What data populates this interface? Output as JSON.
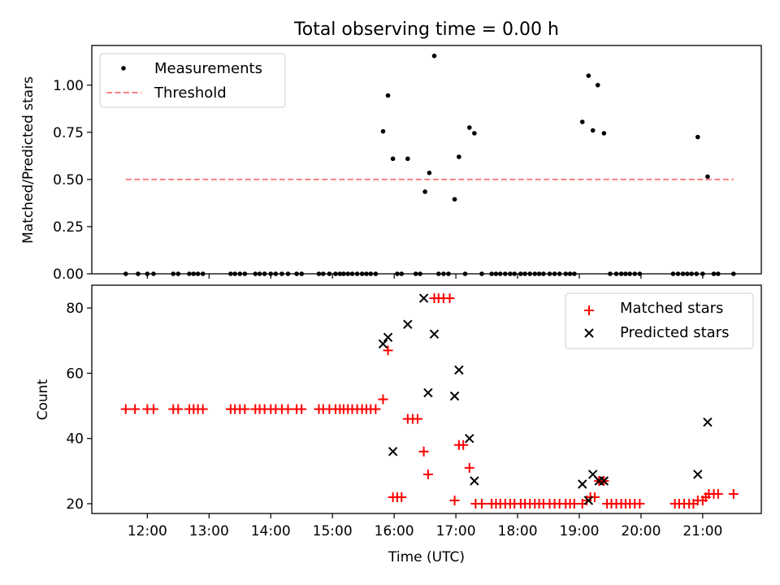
{
  "figure_title": "Total observing time = 0.00 h",
  "chart_data": [
    {
      "type": "scatter",
      "ylabel": "Matched/Predicted stars",
      "xlabel": "",
      "xlim": [
        11.1,
        21.95
      ],
      "ylim": [
        0,
        1.21
      ],
      "yticks": [
        "0.00",
        "0.25",
        "0.50",
        "0.75",
        "1.00"
      ],
      "legend": {
        "position": "top-left",
        "entries": [
          "Measurements",
          "Threshold"
        ]
      },
      "grid": false,
      "series": [
        {
          "name": "Measurements",
          "color": "#000000",
          "marker": "dot",
          "points": [
            [
              11.65,
              0
            ],
            [
              11.85,
              0
            ],
            [
              12.0,
              0
            ],
            [
              12.1,
              0
            ],
            [
              12.42,
              0
            ],
            [
              12.5,
              0
            ],
            [
              12.68,
              0
            ],
            [
              12.75,
              0
            ],
            [
              12.82,
              0
            ],
            [
              12.9,
              0
            ],
            [
              13.35,
              0
            ],
            [
              13.42,
              0
            ],
            [
              13.5,
              0
            ],
            [
              13.58,
              0
            ],
            [
              13.75,
              0
            ],
            [
              13.82,
              0
            ],
            [
              13.9,
              0
            ],
            [
              14.0,
              0
            ],
            [
              14.08,
              0
            ],
            [
              14.18,
              0
            ],
            [
              14.28,
              0
            ],
            [
              14.42,
              0
            ],
            [
              14.5,
              0
            ],
            [
              14.78,
              0
            ],
            [
              14.85,
              0
            ],
            [
              14.95,
              0
            ],
            [
              15.05,
              0
            ],
            [
              15.12,
              0
            ],
            [
              15.18,
              0
            ],
            [
              15.25,
              0
            ],
            [
              15.32,
              0
            ],
            [
              15.4,
              0
            ],
            [
              15.48,
              0
            ],
            [
              15.55,
              0
            ],
            [
              15.62,
              0
            ],
            [
              15.7,
              0
            ],
            [
              15.82,
              0.755
            ],
            [
              15.9,
              0.945
            ],
            [
              15.98,
              0.61
            ],
            [
              16.05,
              0
            ],
            [
              16.12,
              0
            ],
            [
              16.22,
              0.61
            ],
            [
              16.35,
              0
            ],
            [
              16.42,
              0
            ],
            [
              16.5,
              0.435
            ],
            [
              16.57,
              0.535
            ],
            [
              16.65,
              1.155
            ],
            [
              16.72,
              0
            ],
            [
              16.8,
              0
            ],
            [
              16.88,
              0
            ],
            [
              16.98,
              0.395
            ],
            [
              17.05,
              0.62
            ],
            [
              17.15,
              0
            ],
            [
              17.22,
              0.775
            ],
            [
              17.3,
              0.745
            ],
            [
              17.42,
              0
            ],
            [
              17.58,
              0
            ],
            [
              17.65,
              0
            ],
            [
              17.72,
              0
            ],
            [
              17.8,
              0
            ],
            [
              17.88,
              0
            ],
            [
              17.95,
              0
            ],
            [
              18.05,
              0
            ],
            [
              18.12,
              0
            ],
            [
              18.2,
              0
            ],
            [
              18.28,
              0
            ],
            [
              18.35,
              0
            ],
            [
              18.42,
              0
            ],
            [
              18.52,
              0
            ],
            [
              18.6,
              0
            ],
            [
              18.68,
              0
            ],
            [
              18.78,
              0
            ],
            [
              18.85,
              0
            ],
            [
              18.92,
              0
            ],
            [
              19.05,
              0.805
            ],
            [
              19.15,
              1.05
            ],
            [
              19.22,
              0.76
            ],
            [
              19.3,
              1.0
            ],
            [
              19.4,
              0.745
            ],
            [
              19.5,
              0
            ],
            [
              19.6,
              0
            ],
            [
              19.68,
              0
            ],
            [
              19.75,
              0
            ],
            [
              19.82,
              0
            ],
            [
              19.9,
              0
            ],
            [
              19.98,
              0
            ],
            [
              20.52,
              0
            ],
            [
              20.6,
              0
            ],
            [
              20.68,
              0
            ],
            [
              20.75,
              0
            ],
            [
              20.82,
              0
            ],
            [
              20.9,
              0
            ],
            [
              20.92,
              0.725
            ],
            [
              21.0,
              0
            ],
            [
              21.08,
              0.515
            ],
            [
              21.18,
              0
            ],
            [
              21.25,
              0
            ],
            [
              21.5,
              0
            ]
          ]
        },
        {
          "name": "Threshold",
          "color": "#ff8080",
          "style": "dashed",
          "points": [
            [
              11.65,
              0.5
            ],
            [
              21.5,
              0.5
            ]
          ]
        }
      ]
    },
    {
      "type": "scatter",
      "ylabel": "Count",
      "xlabel": "Time (UTC)",
      "xlim": [
        11.1,
        21.95
      ],
      "ylim": [
        17,
        87
      ],
      "yticks": [
        "20",
        "40",
        "60",
        "80"
      ],
      "xticks": [
        "12:00",
        "13:00",
        "14:00",
        "15:00",
        "16:00",
        "17:00",
        "18:00",
        "19:00",
        "20:00",
        "21:00"
      ],
      "legend": {
        "position": "top-right",
        "entries": [
          "Matched stars",
          "Predicted stars"
        ]
      },
      "grid": false,
      "series": [
        {
          "name": "Matched stars",
          "color": "#ff0000",
          "marker": "plus",
          "points": [
            [
              11.65,
              49
            ],
            [
              11.8,
              49
            ],
            [
              12.0,
              49
            ],
            [
              12.1,
              49
            ],
            [
              12.42,
              49
            ],
            [
              12.5,
              49
            ],
            [
              12.68,
              49
            ],
            [
              12.75,
              49
            ],
            [
              12.82,
              49
            ],
            [
              12.9,
              49
            ],
            [
              13.35,
              49
            ],
            [
              13.42,
              49
            ],
            [
              13.5,
              49
            ],
            [
              13.58,
              49
            ],
            [
              13.75,
              49
            ],
            [
              13.82,
              49
            ],
            [
              13.9,
              49
            ],
            [
              14.0,
              49
            ],
            [
              14.08,
              49
            ],
            [
              14.18,
              49
            ],
            [
              14.28,
              49
            ],
            [
              14.42,
              49
            ],
            [
              14.5,
              49
            ],
            [
              14.78,
              49
            ],
            [
              14.85,
              49
            ],
            [
              14.95,
              49
            ],
            [
              15.05,
              49
            ],
            [
              15.12,
              49
            ],
            [
              15.18,
              49
            ],
            [
              15.25,
              49
            ],
            [
              15.32,
              49
            ],
            [
              15.4,
              49
            ],
            [
              15.48,
              49
            ],
            [
              15.55,
              49
            ],
            [
              15.62,
              49
            ],
            [
              15.7,
              49
            ],
            [
              15.82,
              52
            ],
            [
              15.9,
              67
            ],
            [
              15.98,
              22
            ],
            [
              16.05,
              22
            ],
            [
              16.12,
              22
            ],
            [
              16.22,
              46
            ],
            [
              16.3,
              46
            ],
            [
              16.38,
              46
            ],
            [
              16.48,
              36
            ],
            [
              16.55,
              29
            ],
            [
              16.65,
              83
            ],
            [
              16.72,
              83
            ],
            [
              16.8,
              83
            ],
            [
              16.9,
              83
            ],
            [
              16.98,
              21
            ],
            [
              17.05,
              38
            ],
            [
              17.12,
              38
            ],
            [
              17.22,
              31
            ],
            [
              17.32,
              20
            ],
            [
              17.42,
              20
            ],
            [
              17.58,
              20
            ],
            [
              17.65,
              20
            ],
            [
              17.72,
              20
            ],
            [
              17.8,
              20
            ],
            [
              17.88,
              20
            ],
            [
              17.95,
              20
            ],
            [
              18.05,
              20
            ],
            [
              18.12,
              20
            ],
            [
              18.2,
              20
            ],
            [
              18.28,
              20
            ],
            [
              18.35,
              20
            ],
            [
              18.42,
              20
            ],
            [
              18.52,
              20
            ],
            [
              18.6,
              20
            ],
            [
              18.68,
              20
            ],
            [
              18.78,
              20
            ],
            [
              18.85,
              20
            ],
            [
              18.92,
              20
            ],
            [
              19.05,
              20
            ],
            [
              19.12,
              21
            ],
            [
              19.18,
              22
            ],
            [
              19.25,
              22
            ],
            [
              19.32,
              27
            ],
            [
              19.4,
              27
            ],
            [
              19.45,
              20
            ],
            [
              19.52,
              20
            ],
            [
              19.6,
              20
            ],
            [
              19.68,
              20
            ],
            [
              19.75,
              20
            ],
            [
              19.82,
              20
            ],
            [
              19.9,
              20
            ],
            [
              19.98,
              20
            ],
            [
              20.55,
              20
            ],
            [
              20.62,
              20
            ],
            [
              20.7,
              20
            ],
            [
              20.78,
              20
            ],
            [
              20.85,
              20
            ],
            [
              20.92,
              21
            ],
            [
              21.0,
              21
            ],
            [
              21.05,
              22
            ],
            [
              21.1,
              23
            ],
            [
              21.18,
              23
            ],
            [
              21.25,
              23
            ],
            [
              21.5,
              23
            ]
          ]
        },
        {
          "name": "Predicted stars",
          "color": "#000000",
          "marker": "x",
          "points": [
            [
              15.82,
              69
            ],
            [
              15.9,
              71
            ],
            [
              15.98,
              36
            ],
            [
              16.22,
              75
            ],
            [
              16.48,
              83
            ],
            [
              16.55,
              54
            ],
            [
              16.65,
              72
            ],
            [
              16.98,
              53
            ],
            [
              17.05,
              61
            ],
            [
              17.22,
              40
            ],
            [
              17.3,
              27
            ],
            [
              19.05,
              26
            ],
            [
              19.15,
              21
            ],
            [
              19.22,
              29
            ],
            [
              19.32,
              27
            ],
            [
              19.4,
              27
            ],
            [
              20.92,
              29
            ],
            [
              21.08,
              45
            ]
          ]
        }
      ]
    }
  ]
}
